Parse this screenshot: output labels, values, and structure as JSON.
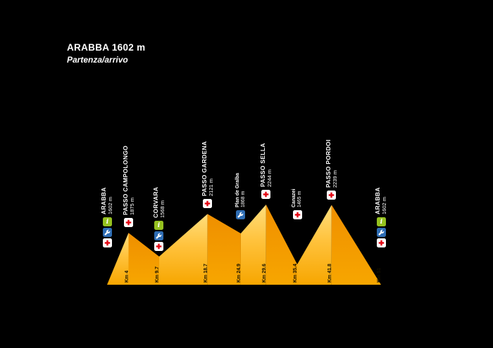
{
  "header": {
    "title": "ARABBA 1602 m",
    "subtitle": "Partenza/arrivo"
  },
  "colors": {
    "background": "#000000",
    "text": "#FFFFFF",
    "ascent_top": "#FFDB70",
    "ascent_bottom": "#F7A600",
    "descent_top": "#F09200",
    "descent_bottom": "#F7A600",
    "info_green": "#95C11F",
    "service_blue": "#2E6DB4",
    "firstaid_red": "#E30613"
  },
  "icon_legend": {
    "info": "info-point-icon",
    "service": "bike-service-icon",
    "firstaid": "first-aid-icon"
  },
  "stops": [
    {
      "name": "ARABBA",
      "altitude": "1602 m",
      "km": 0,
      "elev": 1602,
      "style": "major",
      "end": true,
      "icons": [
        "info",
        "service",
        "firstaid"
      ]
    },
    {
      "name": "PASSO CAMPOLONGO",
      "altitude": "1875 m",
      "km": 4,
      "elev": 1875,
      "style": "major",
      "km_label": "Km 4",
      "icons": [
        "firstaid"
      ]
    },
    {
      "name": "CORVARA",
      "altitude": "1568 m",
      "km": 9.7,
      "elev": 1568,
      "style": "major",
      "km_label": "Km 9.7",
      "icons": [
        "info",
        "service",
        "firstaid"
      ]
    },
    {
      "name": "PASSO GARDENA",
      "altitude": "2121 m",
      "km": 18.7,
      "elev": 2121,
      "style": "major",
      "km_label": "Km 18.7",
      "icons": [
        "firstaid"
      ]
    },
    {
      "name": "Plan de Gralba",
      "altitude": "1868 m",
      "km": 24.9,
      "elev": 1868,
      "style": "minor",
      "km_label": "Km 24.9",
      "icons": [
        "service"
      ]
    },
    {
      "name": "PASSO SELLA",
      "altitude": "2244 m",
      "km": 29.6,
      "elev": 2244,
      "style": "major",
      "km_label": "Km 29.6",
      "icons": [
        "firstaid"
      ]
    },
    {
      "name": "Canazei",
      "altitude": "1465 m",
      "km": 35.4,
      "elev": 1465,
      "style": "minor",
      "km_label": "Km 35.4",
      "icons": [
        "firstaid"
      ]
    },
    {
      "name": "PASSO PORDOI",
      "altitude": "2239 m",
      "km": 41.8,
      "elev": 2239,
      "style": "major",
      "km_label": "Km 41.8",
      "icons": [
        "firstaid"
      ]
    },
    {
      "name": "ARABBA",
      "altitude": "1602 m",
      "km": 51,
      "elev": 1602,
      "style": "major",
      "end": true,
      "km_label": "Km 51",
      "icons": [
        "info",
        "service",
        "firstaid"
      ]
    }
  ],
  "chart_data": {
    "type": "area",
    "title": "ARABBA 1602 m — Partenza/arrivo",
    "x_unit": "km",
    "y_unit": "m",
    "x_range": [
      0,
      51
    ],
    "grid": false,
    "legend": false,
    "points": [
      {
        "name": "Arabba",
        "km": 0,
        "elev_m": 1602
      },
      {
        "name": "Passo Campolongo",
        "km": 4,
        "elev_m": 1875
      },
      {
        "name": "Corvara",
        "km": 9.7,
        "elev_m": 1568
      },
      {
        "name": "Passo Gardena",
        "km": 18.7,
        "elev_m": 2121
      },
      {
        "name": "Plan de Gralba",
        "km": 24.9,
        "elev_m": 1868
      },
      {
        "name": "Passo Sella",
        "km": 29.6,
        "elev_m": 2244
      },
      {
        "name": "Canazei",
        "km": 35.4,
        "elev_m": 1465
      },
      {
        "name": "Passo Pordoi",
        "km": 41.8,
        "elev_m": 2239
      },
      {
        "name": "Arabba",
        "km": 51,
        "elev_m": 1602
      }
    ]
  }
}
